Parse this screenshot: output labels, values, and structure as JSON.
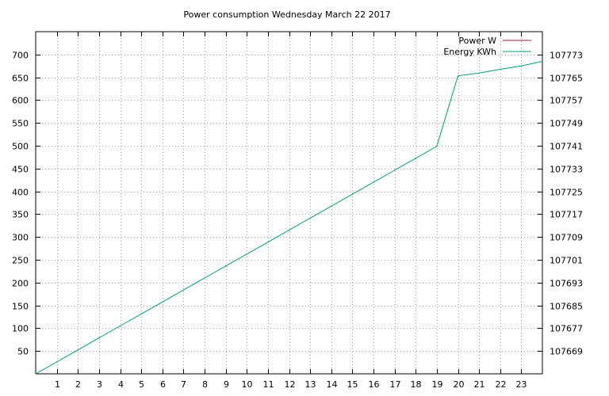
{
  "chart_data": {
    "type": "line",
    "title": "Power consumption Wednesday March 22 2017",
    "xlabel": "",
    "ylabel": "",
    "y2label": "",
    "xlim": [
      0,
      24
    ],
    "ylim": [
      0,
      750
    ],
    "y2lim": [
      107661,
      107781
    ],
    "x_ticks": [
      1,
      2,
      3,
      4,
      5,
      6,
      7,
      8,
      9,
      10,
      11,
      12,
      13,
      14,
      15,
      16,
      17,
      18,
      19,
      20,
      21,
      22,
      23
    ],
    "y_ticks": [
      50,
      100,
      150,
      200,
      250,
      300,
      350,
      400,
      450,
      500,
      550,
      600,
      650,
      700
    ],
    "y2_ticks": [
      107669,
      107677,
      107685,
      107693,
      107701,
      107709,
      107717,
      107725,
      107733,
      107741,
      107749,
      107757,
      107765,
      107773
    ],
    "grid": true,
    "legend_position": "top-right",
    "series": [
      {
        "name": "Power W",
        "color": "#8b1a4a",
        "axis": "left",
        "x": [],
        "y": []
      },
      {
        "name": "Energy KWh",
        "color": "#009e73",
        "axis": "right",
        "x": [
          0,
          1,
          2,
          3,
          4,
          5,
          6,
          7,
          8,
          9,
          10,
          11,
          12,
          13,
          14,
          15,
          16,
          17,
          18,
          19,
          20,
          21,
          22,
          23,
          24
        ],
        "y": [
          107661.0,
          107665.2,
          107669.4,
          107673.6,
          107677.8,
          107682.0,
          107686.2,
          107690.4,
          107694.6,
          107698.8,
          107703.0,
          107707.2,
          107711.4,
          107715.6,
          107719.8,
          107724.0,
          107728.2,
          107732.4,
          107736.6,
          107740.8,
          107765.5,
          107766.5,
          107767.8,
          107769.0,
          107770.6
        ]
      }
    ]
  }
}
